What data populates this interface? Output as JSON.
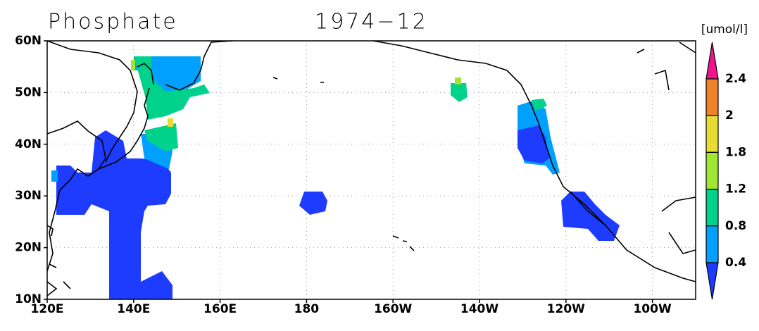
{
  "title": "Phosphate",
  "date": "1974−12",
  "unit": "[umol/l]",
  "lat_labels": [
    "60N",
    "50N",
    "40N",
    "30N",
    "20N",
    "10N"
  ],
  "lon_labels": [
    "120E",
    "140E",
    "160E",
    "180",
    "160W",
    "140W",
    "120W",
    "100W"
  ],
  "colorbar": {
    "labels": [
      "2.4",
      "2",
      "1.8",
      "1.2",
      "0.8",
      "0.4"
    ],
    "colors": [
      "#f0148c",
      "#f08228",
      "#e6dc32",
      "#a0e632",
      "#00d28c",
      "#00a0ff",
      "#1e3cff"
    ]
  }
}
